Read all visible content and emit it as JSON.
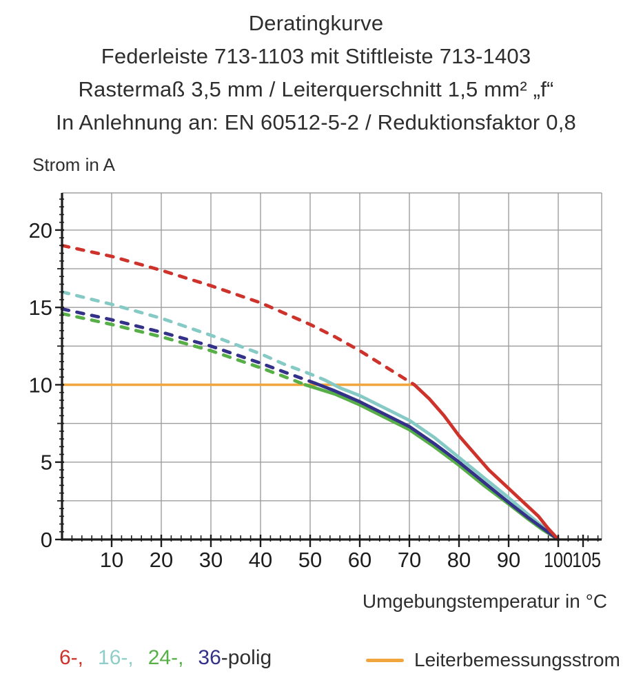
{
  "title": {
    "line1": "Deratingkurve",
    "line2": "Federleiste 713-1103 mit Stiftleiste 713-1403",
    "line3": "Rastermaß 3,5 mm / Leiterquerschnitt 1,5 mm² „f“",
    "line4": "In Anlehnung an: EN 60512-5-2 / Reduktionsfaktor 0,8"
  },
  "chart_data": {
    "type": "line",
    "xlabel": "Umgebungstemperatur in °C",
    "ylabel": "Strom in A",
    "xlim": [
      0,
      108.75
    ],
    "ylim": [
      0,
      22.4
    ],
    "xticks": [
      10,
      20,
      30,
      40,
      50,
      60,
      70,
      80,
      90,
      100,
      105
    ],
    "yticks": [
      0,
      5,
      10,
      15,
      20
    ],
    "x_gridlines": [
      10,
      20,
      30,
      40,
      50,
      60,
      70,
      80,
      90,
      100
    ],
    "y_gridlines": [
      2.5,
      5,
      7.5,
      10,
      12.5,
      15,
      17.5,
      20
    ],
    "grid": true,
    "colors": {
      "grid": "#9d9d9d",
      "axis": "#1d1d1d"
    },
    "series": [
      {
        "name": "6-polig",
        "color": "#cd322b",
        "dashed": [
          [
            0,
            19
          ],
          [
            10,
            18.3
          ],
          [
            20,
            17.4
          ],
          [
            30,
            16.4
          ],
          [
            40,
            15.3
          ],
          [
            50,
            13.9
          ],
          [
            55,
            13.1
          ],
          [
            60,
            12.2
          ],
          [
            65,
            11.2
          ],
          [
            71,
            10
          ]
        ],
        "solid": [
          [
            71,
            10
          ],
          [
            74,
            9.1
          ],
          [
            77,
            8.0
          ],
          [
            80,
            6.7
          ],
          [
            83,
            5.6
          ],
          [
            86,
            4.5
          ],
          [
            90,
            3.3
          ],
          [
            93,
            2.4
          ],
          [
            96,
            1.5
          ],
          [
            98,
            0.7
          ],
          [
            100,
            0
          ]
        ]
      },
      {
        "name": "16-polig",
        "color": "#86cac6",
        "dashed": [
          [
            0,
            16
          ],
          [
            10,
            15.2
          ],
          [
            20,
            14.3
          ],
          [
            30,
            13.2
          ],
          [
            40,
            12.0
          ],
          [
            45,
            11.3
          ],
          [
            50,
            10.7
          ],
          [
            53,
            10.3
          ]
        ],
        "solid": [
          [
            53,
            10.3
          ],
          [
            56,
            9.8
          ],
          [
            60,
            9.3
          ],
          [
            65,
            8.5
          ],
          [
            70,
            7.7
          ],
          [
            75,
            6.6
          ],
          [
            80,
            5.3
          ],
          [
            85,
            4.0
          ],
          [
            90,
            2.7
          ],
          [
            94,
            1.6
          ],
          [
            97,
            0.8
          ],
          [
            100,
            0
          ]
        ]
      },
      {
        "name": "24-polig",
        "color": "#57af47",
        "dashed": [
          [
            0,
            14.6
          ],
          [
            10,
            13.9
          ],
          [
            20,
            13.1
          ],
          [
            30,
            12.2
          ],
          [
            40,
            11.1
          ],
          [
            45,
            10.5
          ],
          [
            49,
            10
          ]
        ],
        "solid": [
          [
            49,
            10
          ],
          [
            55,
            9.4
          ],
          [
            60,
            8.7
          ],
          [
            65,
            7.9
          ],
          [
            70,
            7.1
          ],
          [
            75,
            6.0
          ],
          [
            80,
            4.8
          ],
          [
            85,
            3.5
          ],
          [
            90,
            2.3
          ],
          [
            94,
            1.3
          ],
          [
            97,
            0.6
          ],
          [
            100,
            0
          ]
        ]
      },
      {
        "name": "36-polig",
        "color": "#343189",
        "dashed": [
          [
            0,
            14.9
          ],
          [
            10,
            14.2
          ],
          [
            20,
            13.4
          ],
          [
            30,
            12.5
          ],
          [
            40,
            11.4
          ],
          [
            45,
            10.8
          ],
          [
            51,
            10.1
          ]
        ],
        "solid": [
          [
            51,
            10.1
          ],
          [
            55,
            9.6
          ],
          [
            60,
            8.9
          ],
          [
            65,
            8.1
          ],
          [
            70,
            7.3
          ],
          [
            75,
            6.2
          ],
          [
            80,
            5.0
          ],
          [
            85,
            3.7
          ],
          [
            90,
            2.4
          ],
          [
            94,
            1.4
          ],
          [
            97,
            0.7
          ],
          [
            100,
            0
          ]
        ]
      }
    ],
    "reference_line": {
      "label": "Leiterbemessungsstrom",
      "color": "#f0a63c",
      "y": 10,
      "x_start": 0,
      "x_end": 71
    }
  },
  "legend": {
    "items": [
      {
        "label": "6-,",
        "color": "#cd322b"
      },
      {
        "label": "16-,",
        "color": "#8fcdc9"
      },
      {
        "label": "24-,",
        "color": "#57af47"
      },
      {
        "label": "36",
        "color": "#343189"
      }
    ],
    "suffix": "-polig",
    "reference": {
      "label": "Leiterbemessungsstrom",
      "color": "#f0a63c"
    }
  }
}
